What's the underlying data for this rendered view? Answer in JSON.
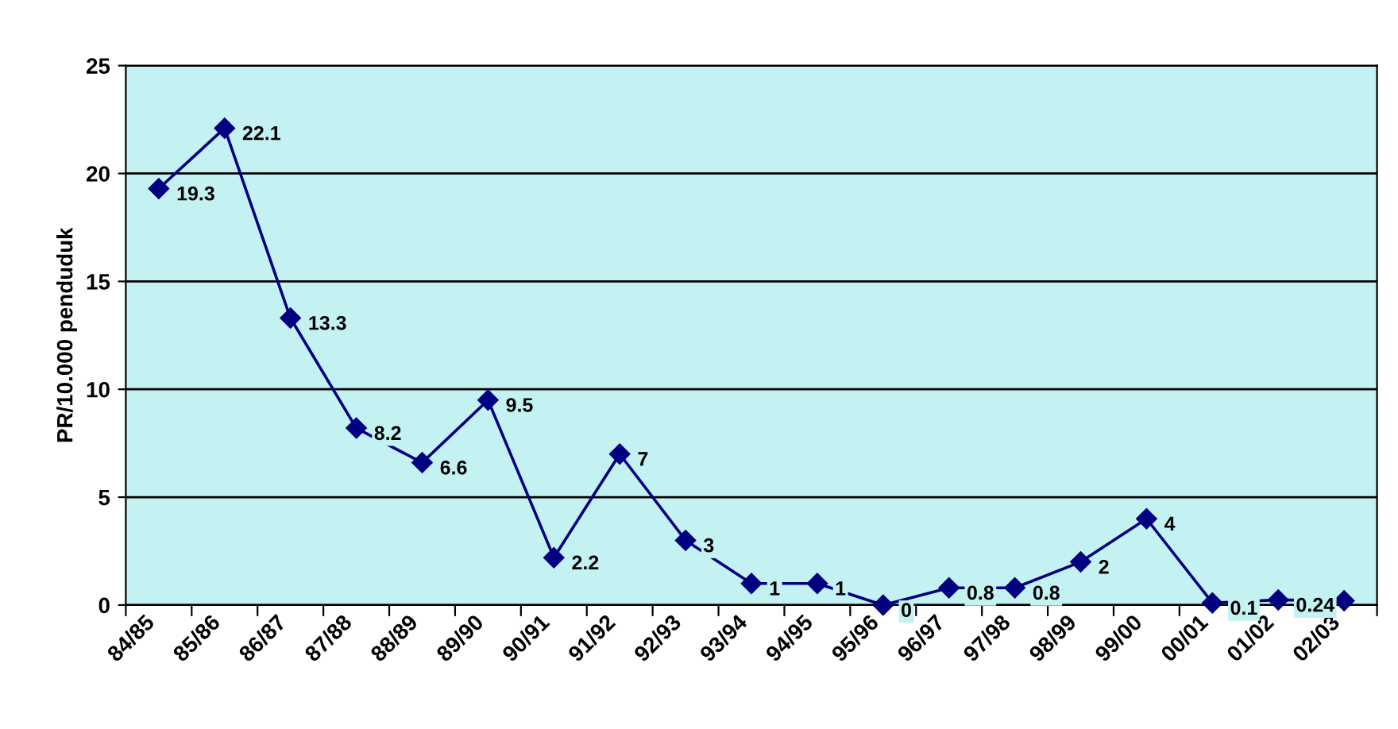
{
  "chart_data": {
    "type": "line",
    "ylabel": "PR/10.000 penduduk",
    "categories": [
      "84/85",
      "85/86",
      "86/87",
      "87/88",
      "88/89",
      "89/90",
      "90/91",
      "91/92",
      "92/93",
      "93/94",
      "94/95",
      "95/96",
      "96/97",
      "97/98",
      "98/99",
      "99/00",
      "00/01",
      "01/02",
      "02/03"
    ],
    "series": [
      {
        "color": "#000080",
        "values": [
          19.3,
          22.1,
          13.3,
          8.2,
          6.6,
          9.5,
          2.2,
          7,
          3,
          1,
          1,
          0,
          0.8,
          0.8,
          2,
          4,
          0.1,
          0.24,
          0.2
        ],
        "value_labels": [
          "19.3",
          "22.1",
          "13.3",
          "8.2",
          "6.6",
          "9.5",
          "2.2",
          "7",
          "3",
          "1",
          "1",
          "0",
          "0.8",
          "0.8",
          "2",
          "4",
          "0.1",
          "0.24",
          null
        ]
      }
    ],
    "ylim": [
      0,
      25
    ],
    "yticks": [
      0,
      5,
      10,
      15,
      20,
      25
    ],
    "grid": "y",
    "marker": "diamond",
    "line_style": "solid",
    "legend": false
  }
}
